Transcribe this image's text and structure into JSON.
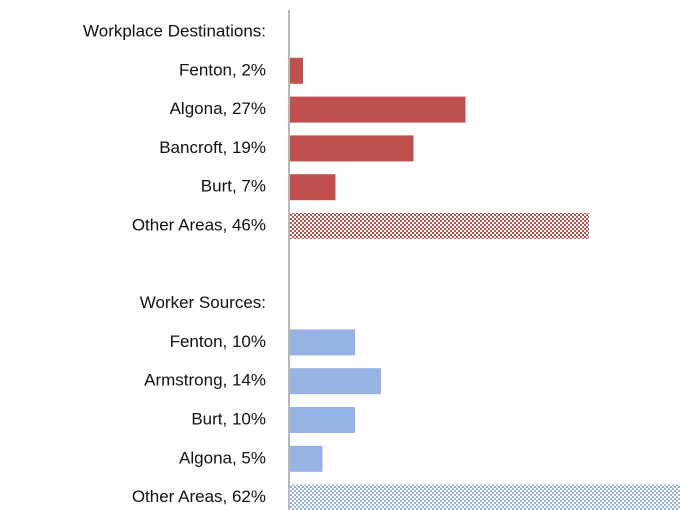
{
  "chart_data": {
    "type": "bar",
    "orientation": "horizontal",
    "xlim": [
      0,
      60
    ],
    "groups": [
      {
        "title": "Workplace Destinations:",
        "color": "#c0504d",
        "categories": [
          "Fenton, 2%",
          "Algona, 27%",
          "Bancroft, 19%",
          "Burt, 7%",
          "Other Areas, 46%"
        ],
        "values": [
          2,
          27,
          19,
          7,
          46
        ],
        "fills": [
          "solid",
          "solid",
          "solid",
          "solid",
          "hatched"
        ]
      },
      {
        "title": "Worker Sources:",
        "color": "#95b3e3",
        "categories": [
          "Fenton, 10%",
          "Armstrong, 14%",
          "Burt, 10%",
          "Algona, 5%",
          "Other Areas, 62%"
        ],
        "values": [
          10,
          14,
          10,
          5,
          62
        ],
        "fills": [
          "solid",
          "solid",
          "solid",
          "solid",
          "hatched"
        ]
      }
    ]
  }
}
